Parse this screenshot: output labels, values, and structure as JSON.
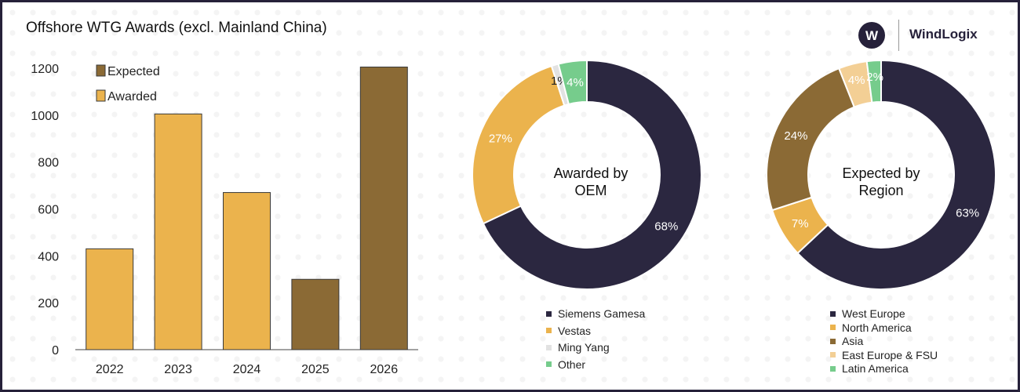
{
  "header": {
    "title": "Offshore WTG Awards (excl. Mainland China)",
    "brand": "WindLogix",
    "brand_mark": "W"
  },
  "colors": {
    "awarded": "#ebb34d",
    "expected": "#8b6a35",
    "dark": "#2b2740",
    "light_gray": "#e2e2e2",
    "green": "#76cc8c",
    "pale": "#f3cf95"
  },
  "chart_data": [
    {
      "type": "bar",
      "categories": [
        "2022",
        "2023",
        "2024",
        "2025",
        "2026"
      ],
      "series": [
        {
          "name": "Expected",
          "values": [
            0,
            0,
            0,
            300,
            1205
          ]
        },
        {
          "name": "Awarded",
          "values": [
            430,
            1005,
            670,
            0,
            0
          ]
        }
      ],
      "ylim": [
        0,
        1200
      ],
      "yticks": [
        "0",
        "200",
        "400",
        "600",
        "800",
        "1000",
        "1200"
      ],
      "legend": [
        "Expected",
        "Awarded"
      ],
      "legend_placement": "top-left",
      "grid": false
    },
    {
      "type": "pie",
      "center_label": [
        "Awarded by",
        "OEM"
      ],
      "labels": [
        "Siemens Gamesa",
        "Vestas",
        "Ming Yang",
        "Other"
      ],
      "values": [
        68,
        27,
        1,
        4
      ],
      "value_labels": [
        "68%",
        "27%",
        "1%",
        "4%"
      ],
      "colors": [
        "#2b2740",
        "#ebb34d",
        "#e2e2e2",
        "#76cc8c"
      ]
    },
    {
      "type": "pie",
      "center_label": [
        "Expected by",
        "Region"
      ],
      "labels": [
        "West Europe",
        "North America",
        "Asia",
        "East Europe & FSU",
        "Latin America"
      ],
      "values": [
        63,
        7,
        24,
        4,
        2
      ],
      "value_labels": [
        "63%",
        "7%",
        "24%",
        "4%",
        "2%"
      ],
      "colors": [
        "#2b2740",
        "#ebb34d",
        "#8b6a35",
        "#f3cf95",
        "#76cc8c"
      ]
    }
  ]
}
